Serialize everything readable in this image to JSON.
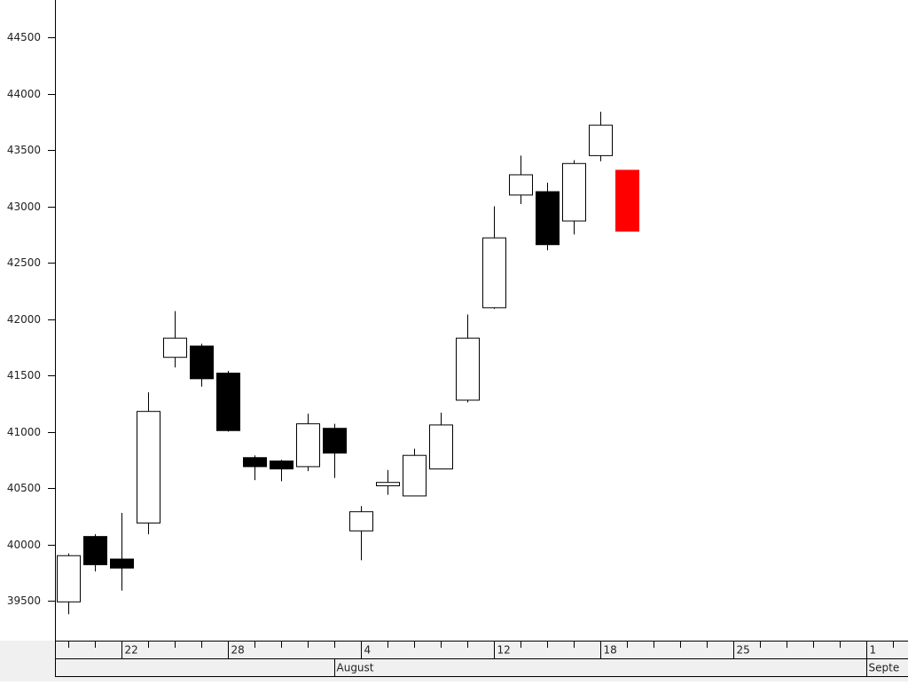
{
  "chart_data": {
    "type": "candlestick",
    "categories": [
      null,
      null,
      "22",
      null,
      null,
      null,
      "28",
      null,
      null,
      null,
      null,
      "4",
      null,
      null,
      null,
      null,
      "12",
      null,
      null,
      null,
      "18",
      null,
      null,
      null,
      null,
      "25",
      null,
      null,
      null,
      null,
      "1",
      null
    ],
    "months": [
      null,
      null,
      null,
      null,
      null,
      null,
      null,
      null,
      null,
      null,
      "August",
      null,
      null,
      null,
      null,
      null,
      null,
      null,
      null,
      null,
      null,
      null,
      null,
      null,
      null,
      null,
      null,
      null,
      null,
      null,
      "Septe",
      null
    ],
    "open": [
      39490,
      40070,
      39870,
      40190,
      41660,
      41760,
      41520,
      40770,
      40740,
      40690,
      41030,
      40120,
      40520,
      40430,
      40670,
      41280,
      42100,
      43100,
      43130,
      42870,
      43450,
      43320,
      null,
      null,
      null,
      null,
      null,
      null,
      null,
      null,
      null,
      null
    ],
    "high": [
      39920,
      40090,
      40280,
      41350,
      42070,
      41780,
      41540,
      40790,
      40750,
      41160,
      41070,
      40340,
      40660,
      40850,
      41170,
      42040,
      43000,
      43450,
      43210,
      43410,
      43840,
      43320,
      null,
      null,
      null,
      null,
      null,
      null,
      null,
      null,
      null,
      null
    ],
    "low": [
      39380,
      39760,
      39590,
      40090,
      41570,
      41400,
      41000,
      40570,
      40560,
      40650,
      40590,
      39860,
      40440,
      40430,
      40670,
      41260,
      42090,
      43020,
      42610,
      42750,
      43400,
      42780,
      null,
      null,
      null,
      null,
      null,
      null,
      null,
      null,
      null,
      null
    ],
    "close": [
      39900,
      39820,
      39790,
      41180,
      41830,
      41470,
      41010,
      40690,
      40670,
      41070,
      40810,
      40290,
      40550,
      40790,
      41060,
      41830,
      42720,
      43280,
      42660,
      43380,
      43720,
      42780,
      null,
      null,
      null,
      null,
      null,
      null,
      null,
      null,
      null,
      null
    ],
    "colors": [
      "#ffffff",
      "#000000",
      "#000000",
      "#ffffff",
      "#ffffff",
      "#000000",
      "#000000",
      "#000000",
      "#000000",
      "#ffffff",
      "#000000",
      "#ffffff",
      "#ffffff",
      "#ffffff",
      "#ffffff",
      "#ffffff",
      "#ffffff",
      "#ffffff",
      "#000000",
      "#ffffff",
      "#ffffff",
      "#ff0000",
      null,
      null,
      null,
      null,
      null,
      null,
      null,
      null,
      null,
      null
    ],
    "ylim": [
      39146,
      44831
    ],
    "yticks": [
      39500,
      40000,
      40500,
      41000,
      41500,
      42000,
      42500,
      43000,
      43500,
      44000,
      44500
    ]
  }
}
